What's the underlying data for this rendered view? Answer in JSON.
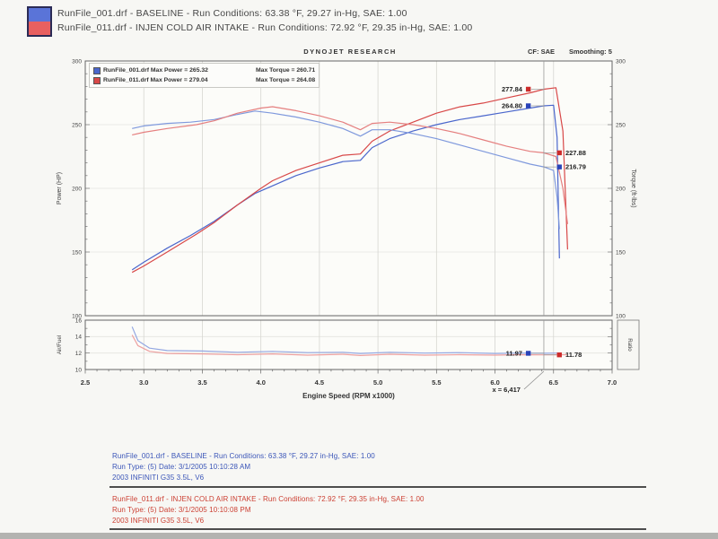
{
  "header": {
    "legend": [
      {
        "color": "#5a74d8",
        "label": "RunFile_001.drf - BASELINE  -  Run Conditions: 63.38 °F, 29.27 in-Hg, SAE: 1.00"
      },
      {
        "color": "#e86060",
        "label": "RunFile_011.drf - INJEN COLD AIR INTAKE  -  Run Conditions: 72.92 °F, 29.35 in-Hg, SAE: 1.00"
      }
    ]
  },
  "chart_header": {
    "title": "DYNOJET RESEARCH",
    "cf_label": "CF: SAE",
    "smoothing_label": "Smoothing: 5"
  },
  "chart_data": [
    {
      "type": "line",
      "title": "DYNOJET RESEARCH",
      "xlabel": "Engine Speed (RPM x1000)",
      "ylabel_left": "Power (HP)",
      "ylabel_right": "Torque (ft-lbs)",
      "xlim": [
        2.5,
        7.0
      ],
      "xticks": [
        2.5,
        3.0,
        3.5,
        4.0,
        4.5,
        5.0,
        5.5,
        6.0,
        6.5,
        7.0
      ],
      "ylim": [
        100,
        300
      ],
      "yticks": [
        100,
        150,
        200,
        250,
        300
      ],
      "grid": true,
      "legend": [
        {
          "color": "#4a66cc",
          "power_text": "RunFile_001.drf Max Power = 265.32",
          "torque_text": "Max Torque = 260.71"
        },
        {
          "color": "#d84848",
          "power_text": "RunFile_011.drf Max Power = 279.04",
          "torque_text": "Max Torque = 264.08"
        }
      ],
      "cursor": {
        "x": 6.417,
        "label": "x = 6,417"
      },
      "series": [
        {
          "name": "baseline_power",
          "color": "#4a66cc",
          "points": [
            [
              2.9,
              136
            ],
            [
              3.0,
              142
            ],
            [
              3.2,
              153
            ],
            [
              3.4,
              163
            ],
            [
              3.6,
              174
            ],
            [
              3.8,
              187
            ],
            [
              3.95,
              196
            ],
            [
              4.1,
              202
            ],
            [
              4.3,
              210
            ],
            [
              4.5,
              216
            ],
            [
              4.7,
              221
            ],
            [
              4.85,
              222
            ],
            [
              4.95,
              232
            ],
            [
              5.1,
              239
            ],
            [
              5.3,
              245
            ],
            [
              5.5,
              250
            ],
            [
              5.7,
              254
            ],
            [
              5.9,
              257
            ],
            [
              6.1,
              260
            ],
            [
              6.3,
              263
            ],
            [
              6.417,
              264.8
            ],
            [
              6.5,
              265.3
            ],
            [
              6.53,
              240
            ],
            [
              6.55,
              145
            ]
          ]
        },
        {
          "name": "injen_power",
          "color": "#d84848",
          "points": [
            [
              2.9,
              134
            ],
            [
              3.0,
              139
            ],
            [
              3.2,
              150
            ],
            [
              3.45,
              164
            ],
            [
              3.6,
              173
            ],
            [
              3.8,
              187
            ],
            [
              4.0,
              200
            ],
            [
              4.1,
              206
            ],
            [
              4.3,
              214
            ],
            [
              4.5,
              220
            ],
            [
              4.7,
              226
            ],
            [
              4.85,
              227
            ],
            [
              4.95,
              237
            ],
            [
              5.1,
              245
            ],
            [
              5.3,
              252
            ],
            [
              5.5,
              259
            ],
            [
              5.7,
              264
            ],
            [
              5.9,
              267
            ],
            [
              6.1,
              271
            ],
            [
              6.3,
              275
            ],
            [
              6.417,
              277.8
            ],
            [
              6.52,
              279
            ],
            [
              6.58,
              245
            ],
            [
              6.62,
              152
            ]
          ]
        },
        {
          "name": "baseline_torque",
          "color": "#7f99dd",
          "points": [
            [
              2.9,
              247
            ],
            [
              3.0,
              249
            ],
            [
              3.2,
              251
            ],
            [
              3.4,
              252
            ],
            [
              3.6,
              254
            ],
            [
              3.8,
              258
            ],
            [
              3.95,
              260.7
            ],
            [
              4.1,
              259
            ],
            [
              4.3,
              256
            ],
            [
              4.5,
              252
            ],
            [
              4.7,
              247
            ],
            [
              4.85,
              241
            ],
            [
              4.95,
              246
            ],
            [
              5.1,
              246
            ],
            [
              5.3,
              243
            ],
            [
              5.5,
              239
            ],
            [
              5.7,
              234
            ],
            [
              5.9,
              229
            ],
            [
              6.1,
              224
            ],
            [
              6.3,
              219
            ],
            [
              6.417,
              216.8
            ],
            [
              6.5,
              214
            ],
            [
              6.53,
              193
            ],
            [
              6.55,
              168
            ]
          ]
        },
        {
          "name": "injen_torque",
          "color": "#e57f7f",
          "points": [
            [
              2.9,
              242
            ],
            [
              3.0,
              244
            ],
            [
              3.2,
              247
            ],
            [
              3.45,
              250
            ],
            [
              3.6,
              253
            ],
            [
              3.8,
              259
            ],
            [
              4.0,
              263
            ],
            [
              4.1,
              264.1
            ],
            [
              4.3,
              261
            ],
            [
              4.5,
              257
            ],
            [
              4.7,
              252
            ],
            [
              4.85,
              246
            ],
            [
              4.95,
              251
            ],
            [
              5.1,
              252
            ],
            [
              5.3,
              250
            ],
            [
              5.5,
              247
            ],
            [
              5.7,
              243
            ],
            [
              5.9,
              238
            ],
            [
              6.1,
              233
            ],
            [
              6.3,
              229
            ],
            [
              6.417,
              227.9
            ],
            [
              6.52,
              225
            ],
            [
              6.58,
              200
            ],
            [
              6.62,
              172
            ]
          ]
        }
      ],
      "annotations": [
        {
          "text": "277.84",
          "value": 277.84,
          "color": "#cc2b2b",
          "side": "left"
        },
        {
          "text": "264.80",
          "value": 264.8,
          "color": "#2a43b8",
          "side": "left"
        },
        {
          "text": "227.88",
          "value": 227.88,
          "color": "#cc2b2b",
          "side": "right"
        },
        {
          "text": "216.79",
          "value": 216.79,
          "color": "#2a43b8",
          "side": "right"
        }
      ]
    },
    {
      "type": "line",
      "ylabel_left": "Air/Fuel",
      "ylabel_right": "Ratio",
      "ylim": [
        10,
        16
      ],
      "yticks": [
        10,
        12,
        14,
        16
      ],
      "grid": true,
      "series": [
        {
          "name": "baseline_afr",
          "color": "#93a7e2",
          "points": [
            [
              2.9,
              15.2
            ],
            [
              2.95,
              13.5
            ],
            [
              3.05,
              12.6
            ],
            [
              3.2,
              12.3
            ],
            [
              3.5,
              12.25
            ],
            [
              3.8,
              12.1
            ],
            [
              4.1,
              12.2
            ],
            [
              4.4,
              12.05
            ],
            [
              4.7,
              12.1
            ],
            [
              4.85,
              11.95
            ],
            [
              5.1,
              12.1
            ],
            [
              5.4,
              12.0
            ],
            [
              5.7,
              12.05
            ],
            [
              6.0,
              11.95
            ],
            [
              6.2,
              12.0
            ],
            [
              6.417,
              11.97
            ],
            [
              6.55,
              12.0
            ]
          ]
        },
        {
          "name": "injen_afr",
          "color": "#eda0a0",
          "points": [
            [
              2.9,
              14.2
            ],
            [
              2.95,
              12.9
            ],
            [
              3.05,
              12.2
            ],
            [
              3.2,
              11.95
            ],
            [
              3.5,
              11.9
            ],
            [
              3.8,
              11.8
            ],
            [
              4.1,
              11.9
            ],
            [
              4.4,
              11.75
            ],
            [
              4.7,
              11.85
            ],
            [
              4.85,
              11.7
            ],
            [
              5.1,
              11.85
            ],
            [
              5.4,
              11.75
            ],
            [
              5.7,
              11.8
            ],
            [
              6.0,
              11.75
            ],
            [
              6.2,
              11.8
            ],
            [
              6.417,
              11.78
            ],
            [
              6.62,
              11.8
            ]
          ]
        }
      ],
      "annotations": [
        {
          "text": "11.97",
          "value": 11.97,
          "color": "#2a43b8",
          "side": "left"
        },
        {
          "text": "11.78",
          "value": 11.78,
          "color": "#cc2b2b",
          "side": "right"
        }
      ]
    }
  ],
  "footer": {
    "blocks": [
      {
        "color": "#3a55b8",
        "lines": [
          "RunFile_001.drf - BASELINE  -  Run Conditions: 63.38 °F, 29.27 in-Hg, SAE: 1.00",
          "Run Type: (5)  Date: 3/1/2005 10:10:28 AM",
          "2003 INFINITI G35 3.5L, V6"
        ]
      },
      {
        "color": "#cc4033",
        "lines": [
          "RunFile_011.drf - INJEN COLD AIR INTAKE  -  Run Conditions: 72.92 °F, 29.35 in-Hg, SAE: 1.00",
          "Run Type: (5)  Date: 3/1/2005 10:10:08 PM",
          "2003 INFINITI G35 3.5L, V6"
        ]
      }
    ]
  }
}
